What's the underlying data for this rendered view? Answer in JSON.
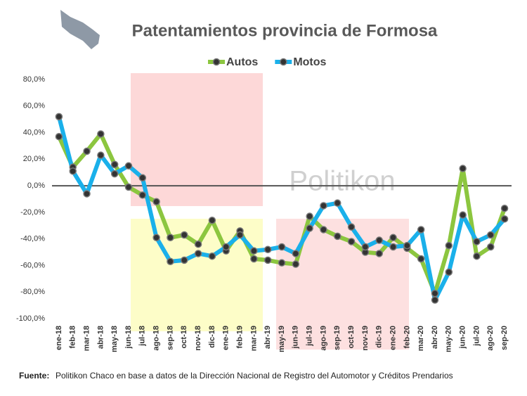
{
  "chart_data": {
    "type": "line",
    "title": "Patentamientos provincia de Formosa",
    "watermark": "Politikon",
    "source_label": "Fuente:",
    "source": "Politikon Chaco en base a datos de la Dirección Nacional de Registro del Automotor y Créditos Prendarios",
    "categories": [
      "ene-18",
      "feb-18",
      "mar-18",
      "abr-18",
      "may-18",
      "jun-18",
      "jul-18",
      "ago-18",
      "sep-18",
      "oct-18",
      "nov-18",
      "dic-18",
      "ene-19",
      "feb-19",
      "mar-19",
      "abr-19",
      "may-19",
      "jun-19",
      "jul-19",
      "ago-19",
      "sep-19",
      "oct-19",
      "nov-19",
      "dic-19",
      "ene-20",
      "feb-20",
      "mar-20",
      "abr-20",
      "may-20",
      "jun-20",
      "jul-20",
      "ago-20",
      "sep-20"
    ],
    "series": [
      {
        "name": "Autos",
        "color": "#8cc63f",
        "values": [
          37,
          14,
          26,
          39,
          16,
          -1,
          -7,
          -12,
          -39,
          -37,
          -44,
          -26,
          -49,
          -34,
          -55,
          -56,
          -58,
          -59,
          -23,
          -33,
          -38,
          -42,
          -50,
          -51,
          -39,
          -47,
          -55,
          -81,
          -45,
          13,
          -53,
          -46,
          -17
        ]
      },
      {
        "name": "Motos",
        "color": "#1ab0ea",
        "values": [
          52,
          11,
          -6,
          23,
          9,
          15,
          6,
          -39,
          -57,
          -56,
          -51,
          -53,
          -46,
          -37,
          -49,
          -48,
          -46,
          -51,
          -32,
          -15,
          -13,
          -31,
          -46,
          -41,
          -46,
          -45,
          -33,
          -86,
          -65,
          -22,
          -42,
          -37,
          -25
        ]
      }
    ],
    "ylim": [
      -100,
      80
    ],
    "yticks": [
      {
        "value": 80,
        "label": "80,0%"
      },
      {
        "value": 60,
        "label": "60,0%"
      },
      {
        "value": 40,
        "label": "40,0%"
      },
      {
        "value": 20,
        "label": "20,0%"
      },
      {
        "value": 0,
        "label": "0,0%"
      },
      {
        "value": -20,
        "label": "-20,0%"
      },
      {
        "value": -40,
        "label": "-40,0%"
      },
      {
        "value": -60,
        "label": "-60,0%"
      },
      {
        "value": -80,
        "label": "-80,0%"
      },
      {
        "value": -100,
        "label": "-100,0%"
      }
    ]
  }
}
